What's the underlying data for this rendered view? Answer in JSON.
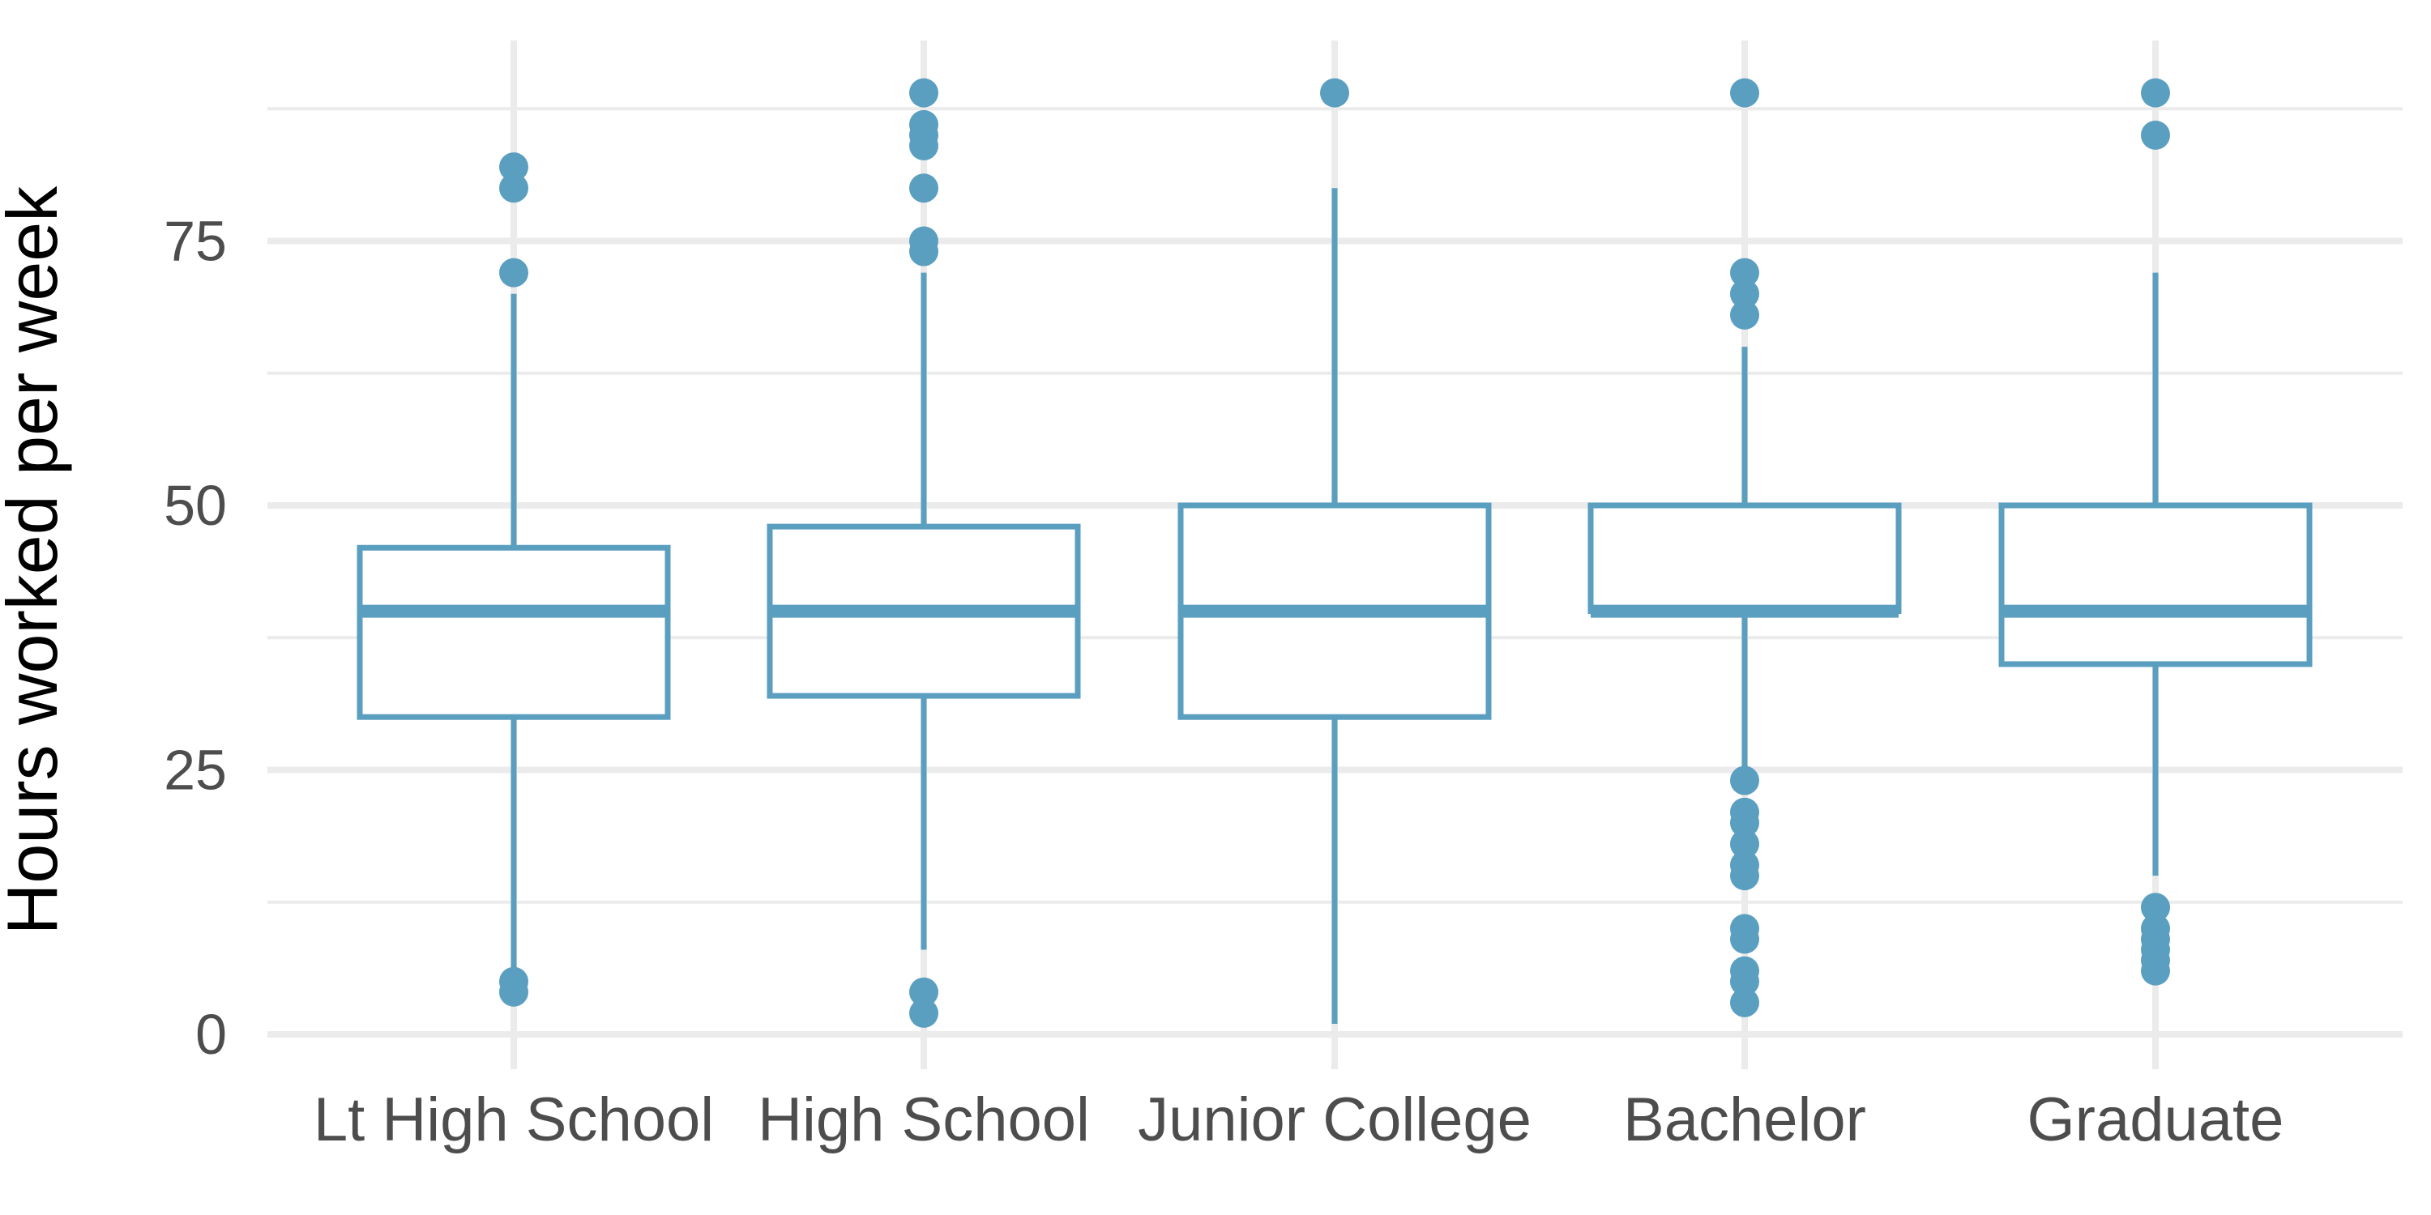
{
  "chart_data": {
    "type": "boxplot",
    "title": "",
    "xlabel": "",
    "ylabel": "Hours worked per week",
    "ylim": [
      -4,
      93
    ],
    "y_ticks": [
      0,
      25,
      50,
      75
    ],
    "y_tick_labels": [
      "0",
      "25",
      "50",
      "75"
    ],
    "grid": true,
    "color": "#5b9fc0",
    "categories": [
      "Lt High School",
      "High School",
      "Junior College",
      "Bachelor",
      "Graduate"
    ],
    "boxes": [
      {
        "category": "Lt High School",
        "q1": 30,
        "median": 40,
        "q3": 46,
        "whisker_low": 6,
        "whisker_high": 70,
        "outliers": [
          82,
          80,
          72,
          5,
          4
        ]
      },
      {
        "category": "High School",
        "q1": 32,
        "median": 40,
        "q3": 48,
        "whisker_low": 8,
        "whisker_high": 72,
        "outliers": [
          89,
          86,
          85,
          84,
          80,
          75,
          74,
          4,
          2
        ]
      },
      {
        "category": "Junior College",
        "q1": 30,
        "median": 40,
        "q3": 50,
        "whisker_low": 1,
        "whisker_high": 80,
        "outliers": [
          89
        ]
      },
      {
        "category": "Bachelor",
        "q1": 40,
        "median": 40,
        "q3": 50,
        "whisker_low": 25,
        "whisker_high": 65,
        "outliers": [
          89,
          72,
          70,
          68,
          24,
          21,
          20,
          18,
          16,
          15,
          10,
          9,
          6,
          5,
          3
        ]
      },
      {
        "category": "Graduate",
        "q1": 35,
        "median": 40,
        "q3": 50,
        "whisker_low": 15,
        "whisker_high": 72,
        "outliers": [
          89,
          85,
          12,
          10,
          9,
          8,
          7,
          6
        ]
      }
    ]
  }
}
